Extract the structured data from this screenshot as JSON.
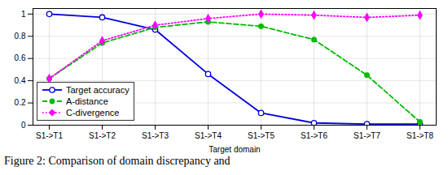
{
  "chart_data": {
    "type": "line",
    "categories": [
      "S1->T1",
      "S1->T2",
      "S1->T3",
      "S1->T4",
      "S1->T5",
      "S1->T6",
      "S1->T7",
      "S1->T8"
    ],
    "series": [
      {
        "name": "Target accuracy",
        "color": "#0000dd",
        "line_style": "solid",
        "marker": "open circle",
        "values": [
          1.0,
          0.97,
          0.86,
          0.46,
          0.11,
          0.02,
          0.01,
          0.01
        ]
      },
      {
        "name": "A-distance",
        "color": "#00bb00",
        "line_style": "dashed",
        "marker": "circle",
        "values": [
          0.42,
          0.74,
          0.88,
          0.93,
          0.89,
          0.77,
          0.45,
          0.03
        ]
      },
      {
        "name": "C-divergence",
        "color": "#ff00ff",
        "line_style": "dotted",
        "marker": "diamond",
        "values": [
          0.42,
          0.76,
          0.9,
          0.96,
          1.0,
          0.99,
          0.97,
          0.99
        ]
      }
    ],
    "xlabel": "Target domain",
    "ylim": [
      0,
      1.05
    ],
    "yticks": [
      0,
      0.2,
      0.4,
      0.6,
      0.8,
      1
    ],
    "grid": true,
    "legend": "lower left",
    "caption": "Figure 2: Comparison of domain discrepancy and"
  }
}
